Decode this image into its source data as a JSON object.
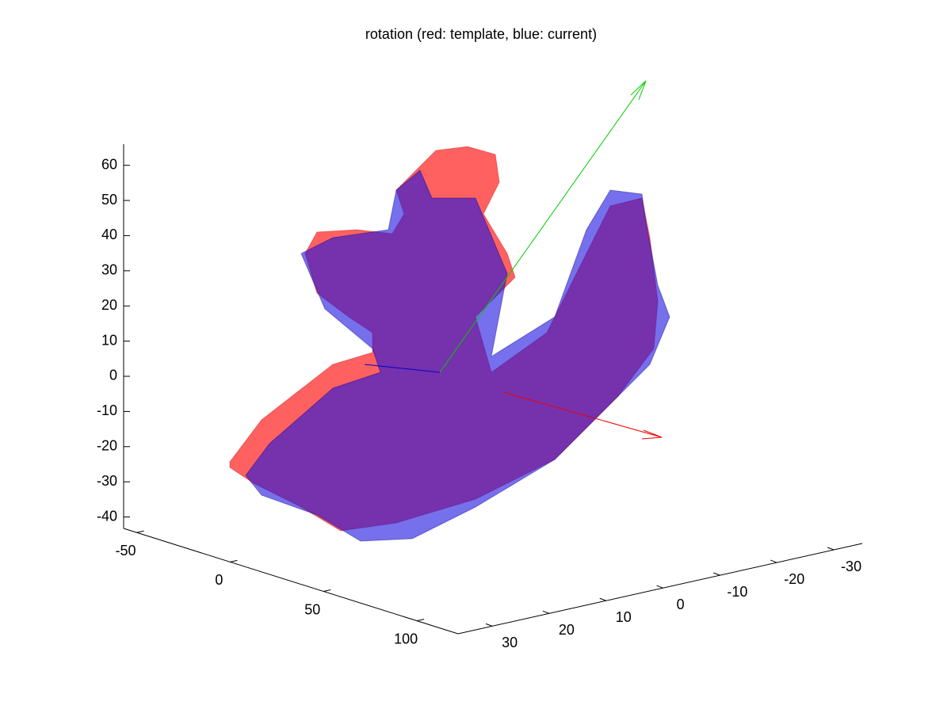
{
  "chart_data": {
    "type": "surface3d",
    "title": "rotation (red: template, blue: current)",
    "xlim": [
      -57,
      122
    ],
    "xticks": [
      -50,
      0,
      50,
      100
    ],
    "ylim": [
      36,
      -35
    ],
    "yticks": [
      30,
      20,
      10,
      0,
      -10,
      -20,
      -30
    ],
    "zlim": [
      -41,
      66
    ],
    "zticks": [
      60,
      50,
      40,
      30,
      20,
      10,
      0,
      -10,
      -20,
      -30,
      -40
    ]
  }
}
